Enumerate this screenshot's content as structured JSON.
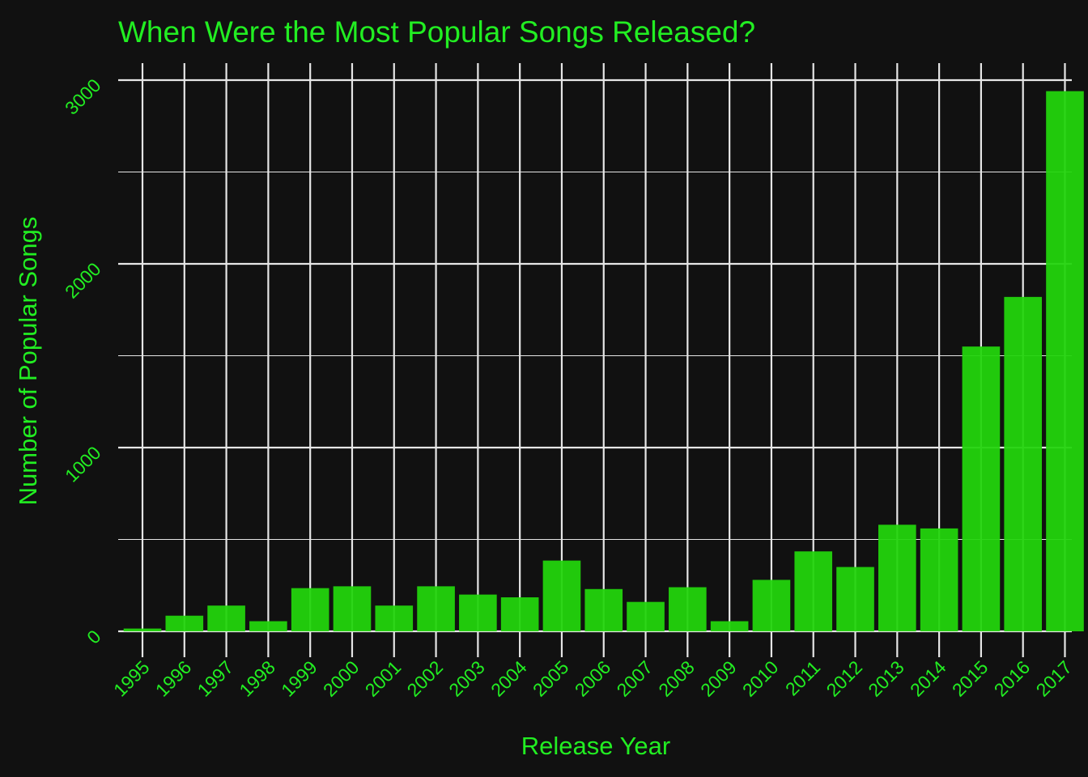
{
  "colors": {
    "background": "#111111",
    "text": "#22ee22",
    "bar": "#22d40c",
    "grid": "#e6e6e6"
  },
  "chart_data": {
    "type": "bar",
    "title": "When Were the Most Popular Songs Released?",
    "xlabel": "Release Year",
    "ylabel": "Number of Popular Songs",
    "ylim": [
      0,
      3000
    ],
    "yticks": [
      0,
      1000,
      2000,
      3000
    ],
    "grid": true,
    "categories": [
      "1995",
      "1996",
      "1997",
      "1998",
      "1999",
      "2000",
      "2001",
      "2002",
      "2003",
      "2004",
      "2005",
      "2006",
      "2007",
      "2008",
      "2009",
      "2010",
      "2011",
      "2012",
      "2013",
      "2014",
      "2015",
      "2016",
      "2017"
    ],
    "values": [
      15,
      85,
      140,
      55,
      235,
      245,
      140,
      245,
      200,
      185,
      385,
      230,
      160,
      240,
      55,
      280,
      435,
      350,
      580,
      560,
      1550,
      1820,
      2940
    ]
  }
}
